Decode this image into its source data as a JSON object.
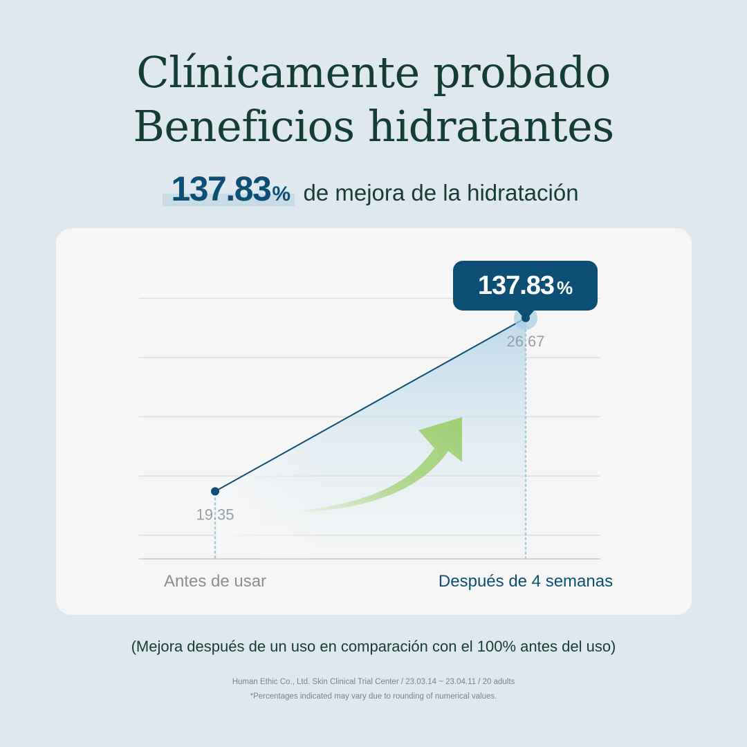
{
  "title": {
    "line1": "Clínicamente probado",
    "line2": "Beneficios hidratantes"
  },
  "headline": {
    "value": "137.83",
    "unit": "%",
    "text": "de mejora de la hidratación"
  },
  "callout": {
    "value": "137.83",
    "unit": "%"
  },
  "chart_data": {
    "type": "line",
    "categories": [
      "Antes de usar",
      "Después de 4 semanas"
    ],
    "values": [
      19.35,
      26.67
    ],
    "value_labels": [
      "19.35",
      "26.67"
    ],
    "title": "",
    "xlabel": "",
    "ylabel": "",
    "ylim": [
      16.5,
      29.0
    ],
    "gridlines": [
      17.5,
      20.0,
      22.5,
      25.0,
      27.5
    ],
    "grid": true,
    "legend": "none",
    "colors": {
      "line": "#0d4f74",
      "area": "#bcd8ea",
      "arrow": "#a8d37f",
      "grid": "#dedede",
      "label_before": "#8a8f94",
      "label_after": "#0d4f74"
    }
  },
  "note": "(Mejora después de un uso en comparación con el 100% antes del uso)",
  "source": {
    "line1": "Human Ethic Co., Ltd. Skin Clinical Trial Center / 23.03.14 ~ 23.04.11 / 20 adults",
    "line2": "*Percentages indicated may vary due to rounding of numerical values."
  }
}
